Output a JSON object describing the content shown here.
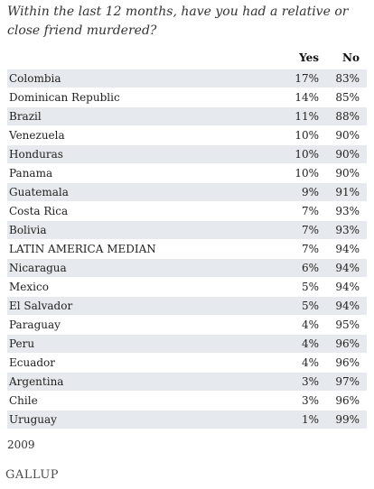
{
  "title": "Within the last 12 months, have you had a relative or close friend murdered?",
  "columns": {
    "yes": "Yes",
    "no": "No"
  },
  "footer": {
    "year": "2009",
    "logo": "GALLUP"
  },
  "chart_data": {
    "type": "table",
    "title": "Within the last 12 months, have you had a relative or close friend murdered?",
    "columns": [
      "Yes",
      "No"
    ],
    "rows": [
      {
        "country": "Colombia",
        "yes": "17%",
        "no": "83%"
      },
      {
        "country": "Dominican Republic",
        "yes": "14%",
        "no": "85%"
      },
      {
        "country": "Brazil",
        "yes": "11%",
        "no": "88%"
      },
      {
        "country": "Venezuela",
        "yes": "10%",
        "no": "90%"
      },
      {
        "country": "Honduras",
        "yes": "10%",
        "no": "90%"
      },
      {
        "country": "Panama",
        "yes": "10%",
        "no": "90%"
      },
      {
        "country": "Guatemala",
        "yes": "9%",
        "no": "91%"
      },
      {
        "country": "Costa Rica",
        "yes": "7%",
        "no": "93%"
      },
      {
        "country": "Bolivia",
        "yes": "7%",
        "no": "93%"
      },
      {
        "country": "LATIN AMERICA MEDIAN",
        "yes": "7%",
        "no": "94%"
      },
      {
        "country": "Nicaragua",
        "yes": "6%",
        "no": "94%"
      },
      {
        "country": "Mexico",
        "yes": "5%",
        "no": "94%"
      },
      {
        "country": "El Salvador",
        "yes": "5%",
        "no": "94%"
      },
      {
        "country": "Paraguay",
        "yes": "4%",
        "no": "95%"
      },
      {
        "country": "Peru",
        "yes": "4%",
        "no": "96%"
      },
      {
        "country": "Ecuador",
        "yes": "4%",
        "no": "96%"
      },
      {
        "country": "Argentina",
        "yes": "3%",
        "no": "97%"
      },
      {
        "country": "Chile",
        "yes": "3%",
        "no": "96%"
      },
      {
        "country": "Uruguay",
        "yes": "1%",
        "no": "99%"
      }
    ]
  },
  "colors": {
    "row_shade": "#e6e9ed"
  }
}
